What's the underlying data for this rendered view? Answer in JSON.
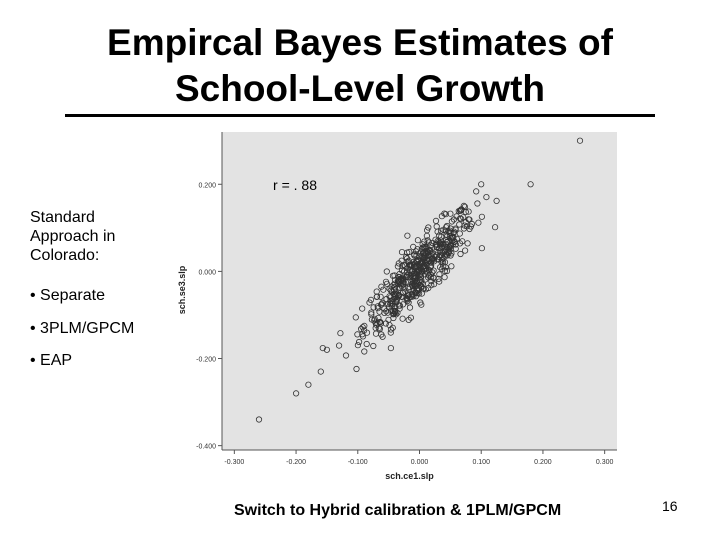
{
  "slide": {
    "title": "Empircal Bayes Estimates of\nSchool-Level Growth",
    "panel_heading": "Standard Approach in Colorado:",
    "bullets": [
      "• Separate",
      "• 3PLM/GPCM",
      "• EAP"
    ],
    "footer": "Switch to Hybrid calibration & 1PLM/GPCM",
    "page_number": "16"
  },
  "chart_data": {
    "type": "scatter",
    "annotation": "r = . 88",
    "xlabel": "sch.ce1.slp",
    "ylabel": "sch.se3.slp",
    "xlim": [
      -0.32,
      0.32
    ],
    "ylim": [
      -0.41,
      0.32
    ],
    "x_ticks": [
      "-0.300",
      "-0.200",
      "-0.100",
      "0.000",
      "0.100",
      "0.200",
      "0.300"
    ],
    "y_ticks": [
      "0.200",
      "0.000",
      "-0.200",
      "-0.400"
    ],
    "grid": false,
    "colors": {
      "plot_bg": "#e3e3e3",
      "marker": "#333333"
    },
    "point_summary": {
      "approx_count": 520,
      "center": [
        0.0,
        0.0
      ],
      "correlation": 0.88,
      "sd_x": 0.045,
      "sd_y": 0.07
    },
    "outliers": [
      [
        0.26,
        0.3
      ],
      [
        -0.26,
        -0.34
      ],
      [
        -0.2,
        -0.28
      ],
      [
        -0.18,
        -0.26
      ],
      [
        -0.16,
        -0.23
      ],
      [
        -0.15,
        -0.18
      ],
      [
        0.18,
        0.2
      ],
      [
        0.1,
        0.2
      ]
    ]
  }
}
